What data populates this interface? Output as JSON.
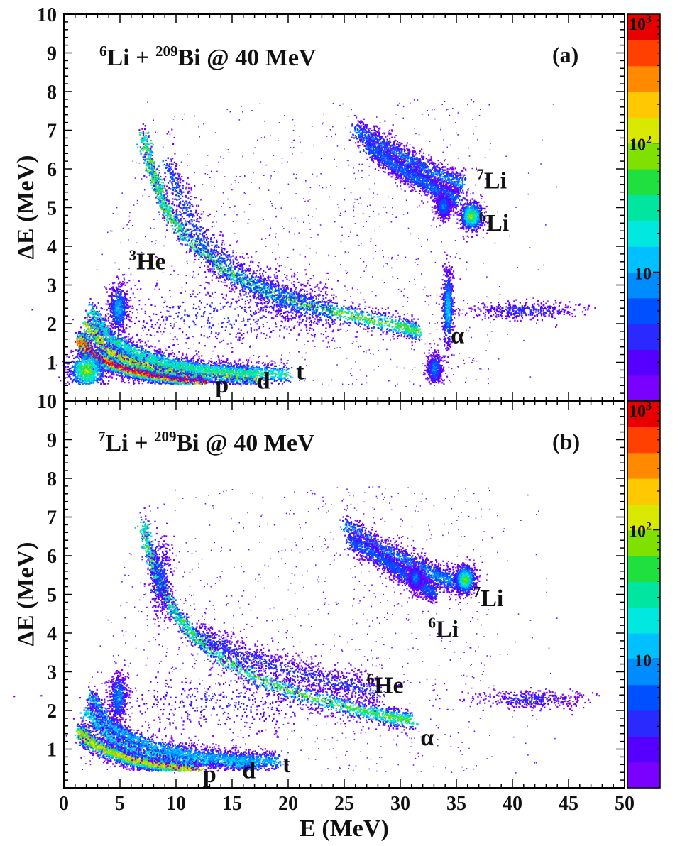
{
  "chart_data": [
    {
      "type": "heatmap",
      "panel_label": "(a)",
      "title_parts": {
        "a": "6",
        "b": "Li + ",
        "c": "209",
        "d": "Bi @ 40 MeV"
      },
      "xlabel": "E (MeV)",
      "ylabel": "ΔE (MeV)",
      "xlim": [
        0,
        50
      ],
      "ylim": [
        0,
        10
      ],
      "x_ticks": [
        "0",
        "5",
        "10",
        "15",
        "20",
        "25",
        "30",
        "35",
        "40",
        "45",
        "50"
      ],
      "y_ticks": [
        "1",
        "2",
        "3",
        "4",
        "5",
        "6",
        "7",
        "8",
        "9",
        "10"
      ],
      "colorbar": {
        "scale": "log",
        "range": [
          1,
          1000
        ],
        "ticks": [
          {
            "base": "10",
            "exp": ""
          },
          {
            "base": "10",
            "exp": "2"
          },
          {
            "base": "10",
            "exp": "3"
          }
        ]
      },
      "bands": [
        {
          "name": "p",
          "path": [
            [
              1.5,
              1.6
            ],
            [
              2,
              1.3
            ],
            [
              4,
              1.0
            ],
            [
              6,
              0.82
            ],
            [
              8,
              0.7
            ],
            [
              10,
              0.62
            ],
            [
              12.5,
              0.55
            ]
          ],
          "intensity": 1.0,
          "width": 0.12
        },
        {
          "name": "d",
          "path": [
            [
              2,
              2.0
            ],
            [
              4,
              1.3
            ],
            [
              6,
              1.05
            ],
            [
              9,
              0.85
            ],
            [
              12,
              0.75
            ],
            [
              15,
              0.68
            ],
            [
              17,
              0.62
            ]
          ],
          "intensity": 0.72,
          "width": 0.13
        },
        {
          "name": "t",
          "path": [
            [
              2.3,
              2.4
            ],
            [
              4,
              1.65
            ],
            [
              6,
              1.3
            ],
            [
              9,
              1.0
            ],
            [
              12,
              0.85
            ],
            [
              16,
              0.75
            ],
            [
              20,
              0.7
            ]
          ],
          "intensity": 0.5,
          "width": 0.14
        },
        {
          "name": "α",
          "path": [
            [
              7,
              6.9
            ],
            [
              8,
              5.8
            ],
            [
              9,
              5.0
            ],
            [
              11,
              4.2
            ],
            [
              14,
              3.45
            ],
            [
              18,
              2.85
            ],
            [
              22,
              2.45
            ],
            [
              26,
              2.2
            ],
            [
              30,
              1.95
            ],
            [
              31.5,
              1.8
            ]
          ],
          "intensity": 0.6,
          "width": 0.14
        },
        {
          "name": "3He",
          "path": [
            [
              9,
              6.2
            ],
            [
              12,
              4.2
            ],
            [
              16,
              3.1
            ],
            [
              20,
              2.6
            ],
            [
              24,
              2.3
            ]
          ],
          "intensity": 0.22,
          "width": 0.35
        },
        {
          "name": "Li-a",
          "path": [
            [
              26,
              7.0
            ],
            [
              29,
              6.5
            ],
            [
              32,
              6.0
            ],
            [
              35.5,
              5.6
            ]
          ],
          "intensity": 0.28,
          "width": 0.18
        },
        {
          "name": "Li-b",
          "path": [
            [
              27,
              6.6
            ],
            [
              30,
              6.0
            ],
            [
              33,
              5.5
            ],
            [
              35,
              5.2
            ]
          ],
          "intensity": 0.26,
          "width": 0.16
        }
      ],
      "blobs": [
        {
          "x": 36.3,
          "y": 4.8,
          "sx": 0.5,
          "sy": 0.18,
          "intensity": 0.62
        },
        {
          "x": 33.8,
          "y": 5.05,
          "sx": 0.35,
          "sy": 0.16,
          "intensity": 0.3
        },
        {
          "x": 4.8,
          "y": 2.4,
          "sx": 0.45,
          "sy": 0.3,
          "intensity": 0.35
        },
        {
          "x": 34.2,
          "y": 2.4,
          "sx": 0.25,
          "sy": 0.5,
          "intensity": 0.4
        },
        {
          "x": 33.0,
          "y": 0.85,
          "sx": 0.35,
          "sy": 0.2,
          "intensity": 0.3
        },
        {
          "x": 2.0,
          "y": 0.8,
          "sx": 0.8,
          "sy": 0.25,
          "intensity": 0.65
        },
        {
          "x": 41.0,
          "y": 2.35,
          "sx": 2.5,
          "sy": 0.12,
          "intensity": 0.18
        },
        {
          "x": 14.0,
          "y": 2.2,
          "sx": 5.5,
          "sy": 0.45,
          "intensity": 0.18
        }
      ],
      "annotations": [
        {
          "id": "7li",
          "sup": "7",
          "text": "Li",
          "x": 36.8,
          "y": 5.5
        },
        {
          "id": "6li",
          "sup": "6",
          "text": "Li",
          "x": 37.0,
          "y": 4.4
        },
        {
          "id": "3he",
          "sup": "3",
          "text": "He",
          "x": 5.8,
          "y": 3.4
        },
        {
          "id": "alpha",
          "sup": "",
          "text": "α",
          "x": 34.5,
          "y": 1.5
        },
        {
          "id": "p",
          "sup": "",
          "text": "p",
          "x": 13.5,
          "y": 0.22
        },
        {
          "id": "d",
          "sup": "",
          "text": "d",
          "x": 17.2,
          "y": 0.32
        },
        {
          "id": "t",
          "sup": "",
          "text": "t",
          "x": 20.7,
          "y": 0.56
        }
      ]
    },
    {
      "type": "heatmap",
      "panel_label": "(b)",
      "title_parts": {
        "a": "7",
        "b": "Li + ",
        "c": "209",
        "d": "Bi @ 40 MeV"
      },
      "xlabel": "E (MeV)",
      "ylabel": "ΔE (MeV)",
      "xlim": [
        0,
        50
      ],
      "ylim": [
        0,
        10
      ],
      "x_ticks": [
        "0",
        "5",
        "10",
        "15",
        "20",
        "25",
        "30",
        "35",
        "40",
        "45",
        "50"
      ],
      "y_ticks": [
        "1",
        "2",
        "3",
        "4",
        "5",
        "6",
        "7",
        "8",
        "9",
        "10"
      ],
      "colorbar": {
        "scale": "log",
        "range": [
          1,
          1000
        ],
        "ticks": [
          {
            "base": "10",
            "exp": ""
          },
          {
            "base": "10",
            "exp": "2"
          },
          {
            "base": "10",
            "exp": "3"
          }
        ]
      },
      "bands": [
        {
          "name": "p",
          "path": [
            [
              1.5,
              1.5
            ],
            [
              2,
              1.25
            ],
            [
              4,
              0.95
            ],
            [
              6,
              0.75
            ],
            [
              8,
              0.63
            ],
            [
              10,
              0.55
            ],
            [
              12,
              0.48
            ]
          ],
          "intensity": 0.72,
          "width": 0.12
        },
        {
          "name": "d",
          "path": [
            [
              2,
              2.0
            ],
            [
              4,
              1.35
            ],
            [
              6,
              1.05
            ],
            [
              9,
              0.85
            ],
            [
              12,
              0.75
            ],
            [
              15,
              0.68
            ],
            [
              17,
              0.62
            ]
          ],
          "intensity": 0.45,
          "width": 0.13
        },
        {
          "name": "t",
          "path": [
            [
              2.3,
              2.4
            ],
            [
              4,
              1.65
            ],
            [
              6,
              1.3
            ],
            [
              9,
              1.0
            ],
            [
              12,
              0.85
            ],
            [
              16,
              0.75
            ],
            [
              19,
              0.7
            ]
          ],
          "intensity": 0.35,
          "width": 0.14
        },
        {
          "name": "α",
          "path": [
            [
              7,
              6.8
            ],
            [
              8,
              5.7
            ],
            [
              9,
              4.9
            ],
            [
              11,
              4.1
            ],
            [
              14,
              3.35
            ],
            [
              18,
              2.75
            ],
            [
              22,
              2.35
            ],
            [
              26,
              2.05
            ],
            [
              29,
              1.85
            ],
            [
              31,
              1.75
            ]
          ],
          "intensity": 0.58,
          "width": 0.14
        },
        {
          "name": "6He",
          "path": [
            [
              12,
              4.0
            ],
            [
              16,
              3.4
            ],
            [
              20,
              3.05
            ],
            [
              24,
              2.75
            ],
            [
              28,
              2.5
            ]
          ],
          "intensity": 0.16,
          "width": 0.22
        },
        {
          "name": "Li-a",
          "path": [
            [
              25,
              6.8
            ],
            [
              28,
              6.2
            ],
            [
              31,
              5.8
            ],
            [
              33,
              5.5
            ],
            [
              35.5,
              5.3
            ]
          ],
          "intensity": 0.3,
          "width": 0.18
        },
        {
          "name": "Li-b",
          "path": [
            [
              25.5,
              6.4
            ],
            [
              28.5,
              5.9
            ],
            [
              31,
              5.4
            ],
            [
              33,
              5.05
            ]
          ],
          "intensity": 0.24,
          "width": 0.16
        }
      ],
      "blobs": [
        {
          "x": 35.7,
          "y": 5.4,
          "sx": 0.45,
          "sy": 0.18,
          "intensity": 0.6
        },
        {
          "x": 31.3,
          "y": 5.45,
          "sx": 0.3,
          "sy": 0.15,
          "intensity": 0.3
        },
        {
          "x": 4.8,
          "y": 2.35,
          "sx": 0.4,
          "sy": 0.3,
          "intensity": 0.32
        },
        {
          "x": 8.5,
          "y": 5.5,
          "sx": 0.5,
          "sy": 0.5,
          "intensity": 0.22
        },
        {
          "x": 41.5,
          "y": 2.3,
          "sx": 2.5,
          "sy": 0.12,
          "intensity": 0.16
        },
        {
          "x": 14.0,
          "y": 2.2,
          "sx": 5.5,
          "sy": 0.4,
          "intensity": 0.16
        }
      ],
      "annotations": [
        {
          "id": "7li",
          "sup": "7",
          "text": "Li",
          "x": 36.5,
          "y": 4.7
        },
        {
          "id": "6li",
          "sup": "6",
          "text": "Li",
          "x": 32.5,
          "y": 3.9
        },
        {
          "id": "6he",
          "sup": "6",
          "text": "He",
          "x": 27.0,
          "y": 2.45
        },
        {
          "id": "alpha",
          "sup": "",
          "text": "α",
          "x": 31.8,
          "y": 1.1
        },
        {
          "id": "p",
          "sup": "",
          "text": "p",
          "x": 12.4,
          "y": 0.15
        },
        {
          "id": "d",
          "sup": "",
          "text": "d",
          "x": 15.9,
          "y": 0.25
        },
        {
          "id": "t",
          "sup": "",
          "text": "t",
          "x": 19.5,
          "y": 0.4
        }
      ]
    }
  ]
}
